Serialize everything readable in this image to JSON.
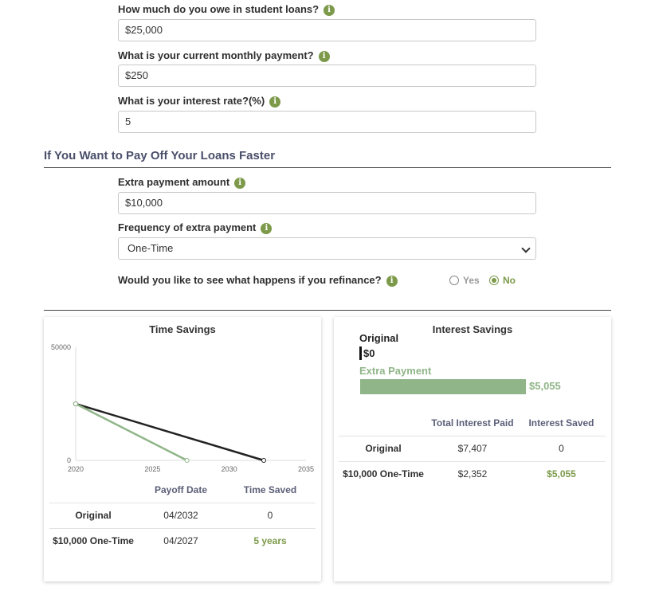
{
  "loan_form": {
    "owe_label": "How much do you owe in student loans?",
    "owe_value": "$25,000",
    "payment_label": "What is your current monthly payment?",
    "payment_value": "$250",
    "rate_label": "What is your interest rate?(%)",
    "rate_value": "5"
  },
  "faster": {
    "section_title": "If You Want to Pay Off Your Loans Faster",
    "extra_label": "Extra payment amount",
    "extra_value": "$10,000",
    "frequency_label": "Frequency of extra payment",
    "frequency_value": "One-Time",
    "refinance_label": "Would you like to see what happens if you refinance?",
    "refinance_yes": "Yes",
    "refinance_no": "No",
    "refinance_selected": "No"
  },
  "icons": {
    "info": "info-icon",
    "dropdown": "chevron-down-icon"
  },
  "colors": {
    "accent_green": "#7c9a4a",
    "extra_series": "#8fb588",
    "original_series": "#222222",
    "section_title": "#4a4f6a"
  },
  "time_savings": {
    "title": "Time Savings",
    "col_payoff": "Payoff Date",
    "col_saved": "Time Saved",
    "rows": [
      {
        "label": "Original",
        "payoff": "04/2032",
        "saved": "0"
      },
      {
        "label": "$10,000 One-Time",
        "payoff": "04/2027",
        "saved": "5 years"
      }
    ]
  },
  "interest_savings": {
    "title": "Interest Savings",
    "col_paid": "Total Interest Paid",
    "col_saved": "Interest Saved",
    "rows": [
      {
        "label": "Original",
        "paid": "$7,407",
        "saved": "0"
      },
      {
        "label": "$10,000 One-Time",
        "paid": "$2,352",
        "saved": "$5,055"
      }
    ]
  },
  "chart_data": [
    {
      "type": "line",
      "title": "Time Savings",
      "xlim": [
        2020,
        2035
      ],
      "ylim": [
        0,
        50000
      ],
      "x_ticks": [
        "2020",
        "2025",
        "2030",
        "2035"
      ],
      "y_ticks": [
        "0",
        "50000"
      ],
      "series": [
        {
          "color": "#222222",
          "points": [
            [
              2020,
              25000
            ],
            [
              2032.25,
              0
            ]
          ]
        },
        {
          "color": "#8fb588",
          "points": [
            [
              2020,
              25000
            ],
            [
              2027.25,
              0
            ]
          ]
        }
      ]
    },
    {
      "type": "bar",
      "title": "Interest Savings",
      "categories": [
        "Original",
        "Extra Payment"
      ],
      "values": [
        0,
        5055
      ],
      "value_labels": [
        "$0",
        "$5,055"
      ],
      "colors": [
        "#111111",
        "#8fb588"
      ]
    }
  ]
}
